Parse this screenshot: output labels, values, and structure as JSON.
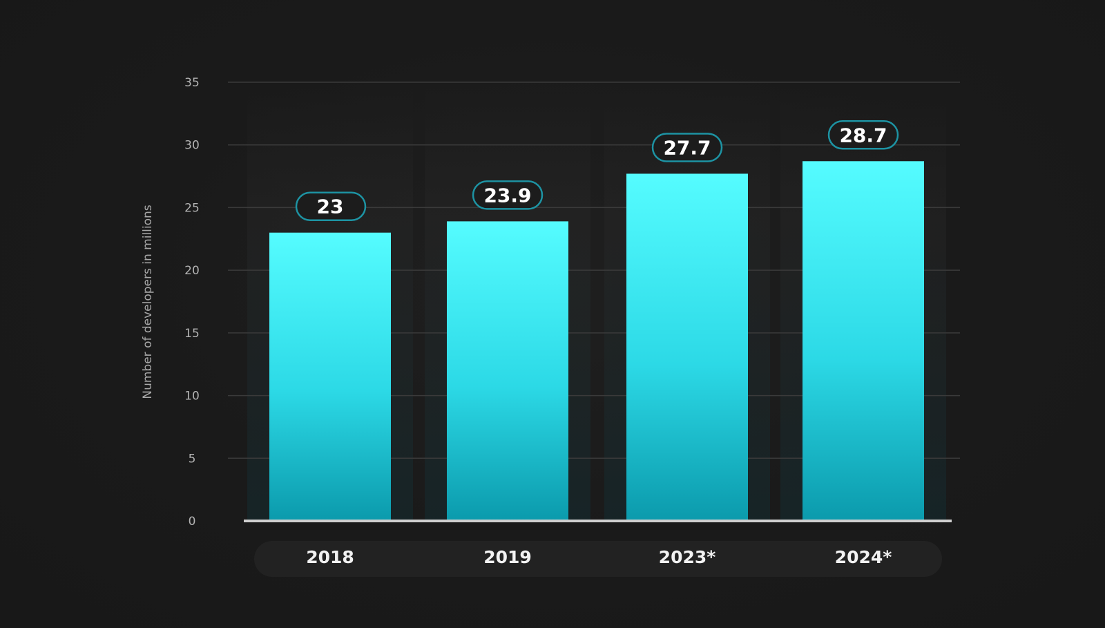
{
  "chart_data": {
    "type": "bar",
    "categories": [
      "2018",
      "2019",
      "2023*",
      "2024*"
    ],
    "values": [
      23,
      23.9,
      27.7,
      28.7
    ],
    "value_labels": [
      "23",
      "23.9",
      "27.7",
      "28.7"
    ],
    "title": "",
    "xlabel": "",
    "ylabel": "Number of developers in millions",
    "ylim": [
      0,
      35
    ],
    "yticks": [
      0,
      5,
      10,
      15,
      20,
      25,
      30,
      35
    ],
    "grid": true,
    "legend": "none",
    "colors": {
      "bar_top": "#55fcff",
      "bar_bottom": "#0b9aac",
      "label_border": "#1d93a3",
      "label_fill": "#1c1c1c",
      "gridline": "#3a3a3a",
      "baseline": "#cfcfcf",
      "category_strip": "#222222",
      "background": "#1a1a1a"
    }
  }
}
